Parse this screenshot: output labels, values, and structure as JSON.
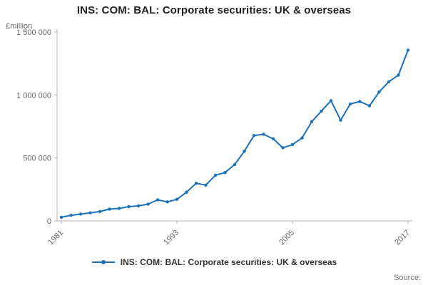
{
  "header": {
    "title": "INS: COM: BAL: Corporate securities: UK & overseas"
  },
  "footer": {
    "source_label": "Source:"
  },
  "chart_data": {
    "type": "line",
    "title": "INS: COM: BAL: Corporate securities: UK & overseas",
    "ylabel": "£million",
    "xlabel": "",
    "legend_entries": [
      "INS: COM: BAL: Corporate securities: UK & overseas"
    ],
    "legend_position": "bottom",
    "grid": false,
    "marker": "dot",
    "colors": {
      "line": "#1d70b8",
      "axis": "#b3b3b3",
      "tick_text": "#666666",
      "title_text": "#222222",
      "legend_text": "#333333",
      "source_text": "#707070"
    },
    "ylim": [
      0,
      1500000
    ],
    "y_ticks": [
      {
        "value": 0,
        "label": "0"
      },
      {
        "value": 500000,
        "label": "500 000"
      },
      {
        "value": 1000000,
        "label": "1 000 000"
      },
      {
        "value": 1500000,
        "label": "1 500 000"
      }
    ],
    "x_ticks": [
      1981,
      1993,
      2005,
      2017
    ],
    "x": [
      1981,
      1982,
      1983,
      1984,
      1985,
      1986,
      1987,
      1988,
      1989,
      1990,
      1991,
      1992,
      1993,
      1994,
      1995,
      1996,
      1997,
      1998,
      1999,
      2000,
      2001,
      2002,
      2003,
      2004,
      2005,
      2006,
      2007,
      2008,
      2009,
      2010,
      2011,
      2012,
      2013,
      2014,
      2015,
      2016,
      2017
    ],
    "series": [
      {
        "name": "INS: COM: BAL: Corporate securities: UK & overseas",
        "values": [
          29000,
          44000,
          54000,
          64000,
          74000,
          94000,
          99000,
          113000,
          119000,
          133000,
          167000,
          151000,
          171000,
          228000,
          299000,
          284000,
          363000,
          384000,
          448000,
          553000,
          678000,
          688000,
          652000,
          581000,
          606000,
          659000,
          788000,
          872000,
          955000,
          800000,
          929000,
          948000,
          914000,
          1024000,
          1105000,
          1158000,
          1356000
        ]
      }
    ]
  }
}
